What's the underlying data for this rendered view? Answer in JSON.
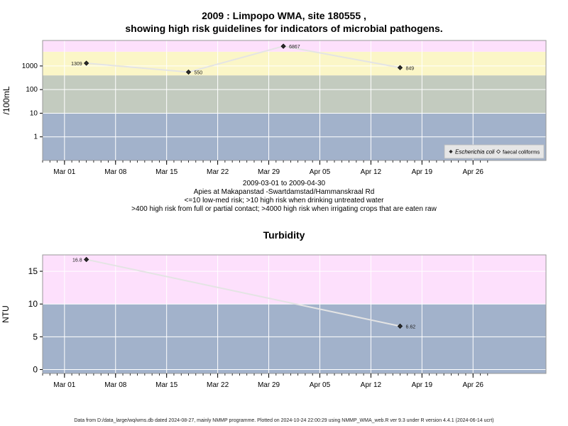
{
  "title_line1": "2009 : Limpopo WMA, site 180555 ,",
  "title_line2": "showing high risk guidelines for indicators of microbial pathogens.",
  "caption": {
    "line1": "2009-03-01 to 2009-04-30",
    "line2": "Apies at Makapanstad -Swartdamstad/Hammanskraal Rd",
    "line3": "<=10 low-med risk; >10 high risk when drinking untreated water",
    "line4": ">400 high risk from full or partial contact; >4000 high risk when irrigating crops that are eaten raw"
  },
  "turbidity_title": "Turbidity",
  "footer": "Data from D:/data_large/wq/wms.db dated 2024-08-27, mainly NMMP programme. Plotted on 2024-10-24 22:00:29 using NMMP_WMA_web.R ver 9.3 under R version 4.4.1 (2024-06-14 ucrt)",
  "colors": {
    "band_low": "#a2b2cb",
    "band_mid": "#c3cbbf",
    "band_high_contact": "#fbf6c7",
    "band_top": "#fde0fc",
    "line": "#e4e4e4",
    "marker": "#2b2b2b",
    "legend_bg": "#e6e6e6"
  },
  "chart_data": [
    {
      "type": "line",
      "title": "2009 : Limpopo WMA, site 180555 , showing high risk guidelines for indicators of microbial pathogens.",
      "ylabel": "/100mL",
      "y_scale": "log10",
      "ylim": [
        0.1,
        12000
      ],
      "y_ticks": [
        1,
        10,
        100,
        1000
      ],
      "y_tick_labels": [
        "1",
        "10",
        "100",
        "1000"
      ],
      "xlim": [
        "2009-02-26",
        "2009-05-06"
      ],
      "x_ticks": [
        "2009-03-01",
        "2009-03-08",
        "2009-03-15",
        "2009-03-22",
        "2009-03-29",
        "2009-04-05",
        "2009-04-12",
        "2009-04-19",
        "2009-04-26"
      ],
      "x_tick_labels": [
        "Mar 01",
        "Mar 08",
        "Mar 15",
        "Mar 22",
        "Mar 29",
        "Apr 05",
        "Apr 12",
        "Apr 19",
        "Apr 26"
      ],
      "bands": [
        {
          "from": 0.1,
          "to": 10,
          "color": "#a2b2cb"
        },
        {
          "from": 10,
          "to": 400,
          "color": "#c3cbbf"
        },
        {
          "from": 400,
          "to": 4000,
          "color": "#fbf6c7"
        },
        {
          "from": 4000,
          "to": 12000,
          "color": "#fde0fc"
        }
      ],
      "series": [
        {
          "name": "Escherichia coli",
          "marker": "filled-diamond",
          "points": [
            {
              "x": "2009-03-04",
              "y": 1309,
              "label": "1309"
            },
            {
              "x": "2009-03-18",
              "y": 550,
              "label": "550"
            },
            {
              "x": "2009-03-31",
              "y": 6867,
              "label": "6867"
            },
            {
              "x": "2009-04-16",
              "y": 849,
              "label": "849"
            }
          ]
        },
        {
          "name": "faecal coliforms",
          "marker": "open-diamond",
          "points": []
        }
      ],
      "legend": {
        "position": "bottom-right",
        "entries": [
          "Escherichia coli",
          "faecal coliforms"
        ]
      },
      "grid": true
    },
    {
      "type": "line",
      "title": "Turbidity",
      "ylabel": "NTU",
      "ylim": [
        -0.6,
        17.5
      ],
      "y_ticks": [
        0,
        5,
        10,
        15
      ],
      "y_tick_labels": [
        "0",
        "5",
        "10",
        "15"
      ],
      "xlim": [
        "2009-02-26",
        "2009-05-06"
      ],
      "x_ticks": [
        "2009-03-01",
        "2009-03-08",
        "2009-03-15",
        "2009-03-22",
        "2009-03-29",
        "2009-04-05",
        "2009-04-12",
        "2009-04-19",
        "2009-04-26"
      ],
      "x_tick_labels": [
        "Mar 01",
        "Mar 08",
        "Mar 15",
        "Mar 22",
        "Mar 29",
        "Apr 05",
        "Apr 12",
        "Apr 19",
        "Apr 26"
      ],
      "bands": [
        {
          "from": -0.6,
          "to": 10,
          "color": "#a2b2cb"
        },
        {
          "from": 10,
          "to": 17.5,
          "color": "#fde0fc"
        }
      ],
      "series": [
        {
          "name": "",
          "marker": "filled-diamond",
          "points": [
            {
              "x": "2009-03-04",
              "y": 16.8,
              "label": "16.8"
            },
            {
              "x": "2009-04-16",
              "y": 6.62,
              "label": "6.62"
            }
          ]
        }
      ],
      "grid": true
    }
  ]
}
